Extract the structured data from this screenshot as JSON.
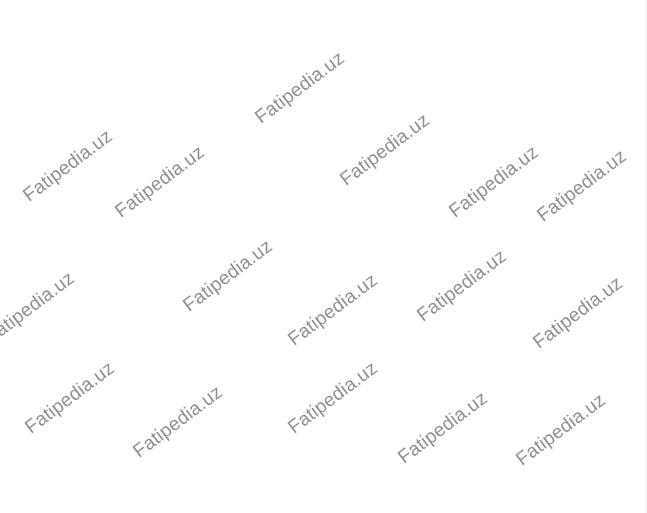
{
  "watermark": {
    "text": "Fatipedia.uz",
    "color": "#8f8f8f",
    "count": 16
  },
  "background": "#ffffff"
}
